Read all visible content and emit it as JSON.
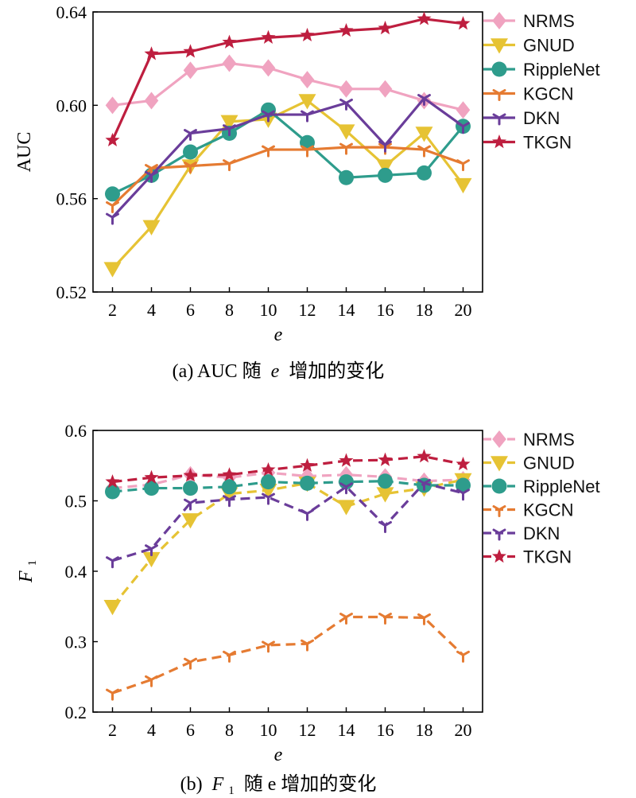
{
  "colors": {
    "NRMS": "#f0a3c0",
    "GNUD": "#e6c334",
    "RippleNet": "#2e9c8c",
    "KGCN": "#e57b32",
    "DKN": "#6a3d9a",
    "TKGN": "#be1e3f"
  },
  "markers": {
    "NRMS": "diamond",
    "GNUD": "triangle-down",
    "RippleNet": "circle",
    "KGCN": "tri-star",
    "DKN": "tri-star",
    "TKGN": "star"
  },
  "chart_data": [
    {
      "type": "line",
      "line_style": "solid",
      "caption_prefix": "(a) AUC 随",
      "caption_var": "e",
      "caption_suffix": "增加的变化",
      "xlabel": "e",
      "ylabel": "AUC",
      "ylabel_sub": "",
      "x": [
        2,
        4,
        6,
        8,
        10,
        12,
        14,
        16,
        18,
        20
      ],
      "xlim": [
        1,
        21
      ],
      "ylim": [
        0.52,
        0.64
      ],
      "yticks": [
        0.52,
        0.56,
        0.6,
        0.64
      ],
      "ytick_labels": [
        "0.52",
        "0.56",
        "0.60",
        "0.64"
      ],
      "legend_position": "top-right",
      "series": [
        {
          "name": "NRMS",
          "values": [
            0.6,
            0.602,
            0.615,
            0.618,
            0.616,
            0.611,
            0.607,
            0.607,
            0.602,
            0.598
          ]
        },
        {
          "name": "GNUD",
          "values": [
            0.53,
            0.548,
            0.574,
            0.593,
            0.594,
            0.602,
            0.589,
            0.574,
            0.588,
            0.566
          ]
        },
        {
          "name": "RippleNet",
          "values": [
            0.562,
            0.57,
            0.58,
            0.588,
            0.598,
            0.584,
            0.569,
            0.57,
            0.571,
            0.591
          ]
        },
        {
          "name": "KGCN",
          "values": [
            0.557,
            0.573,
            0.574,
            0.575,
            0.581,
            0.581,
            0.582,
            0.582,
            0.581,
            0.575
          ]
        },
        {
          "name": "DKN",
          "values": [
            0.552,
            0.57,
            0.588,
            0.59,
            0.596,
            0.596,
            0.601,
            0.583,
            0.603,
            0.591
          ]
        },
        {
          "name": "TKGN",
          "values": [
            0.585,
            0.622,
            0.623,
            0.627,
            0.629,
            0.63,
            0.632,
            0.633,
            0.637,
            0.635
          ]
        }
      ]
    },
    {
      "type": "line",
      "line_style": "dashed",
      "caption_prefix": "(b)",
      "caption_var": "F",
      "caption_var_sub": "1",
      "caption_suffix": "随 e 增加的变化",
      "xlabel": "e",
      "ylabel": "F",
      "ylabel_sub": "1",
      "x": [
        2,
        4,
        6,
        8,
        10,
        12,
        14,
        16,
        18,
        20
      ],
      "xlim": [
        1,
        21
      ],
      "ylim": [
        0.2,
        0.6
      ],
      "yticks": [
        0.2,
        0.3,
        0.4,
        0.5,
        0.6
      ],
      "ytick_labels": [
        "0.2",
        "0.3",
        "0.4",
        "0.5",
        "0.6"
      ],
      "legend_position": "top-right",
      "series": [
        {
          "name": "NRMS",
          "values": [
            0.518,
            0.523,
            0.537,
            0.533,
            0.54,
            0.535,
            0.537,
            0.534,
            0.528,
            0.53
          ]
        },
        {
          "name": "GNUD",
          "values": [
            0.35,
            0.418,
            0.473,
            0.51,
            0.515,
            0.525,
            0.492,
            0.51,
            0.518,
            0.53
          ]
        },
        {
          "name": "RippleNet",
          "values": [
            0.513,
            0.518,
            0.518,
            0.52,
            0.527,
            0.525,
            0.527,
            0.528,
            0.522,
            0.522
          ]
        },
        {
          "name": "KGCN",
          "values": [
            0.227,
            0.246,
            0.271,
            0.281,
            0.295,
            0.297,
            0.335,
            0.335,
            0.334,
            0.281
          ]
        },
        {
          "name": "DKN",
          "values": [
            0.415,
            0.432,
            0.497,
            0.502,
            0.505,
            0.482,
            0.52,
            0.465,
            0.525,
            0.511
          ]
        },
        {
          "name": "TKGN",
          "values": [
            0.527,
            0.533,
            0.536,
            0.537,
            0.544,
            0.55,
            0.557,
            0.558,
            0.563,
            0.552
          ]
        }
      ]
    }
  ]
}
